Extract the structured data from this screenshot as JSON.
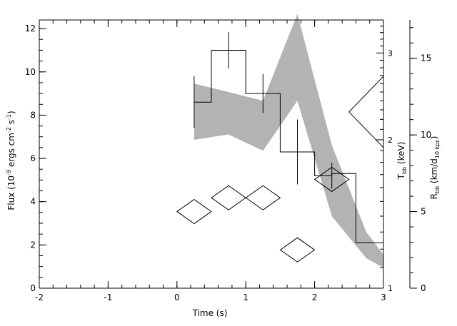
{
  "chart_data": {
    "type": "line",
    "xlabel": "Time (s)",
    "xlim": [
      -2,
      3
    ],
    "x_ticks": [
      "-2",
      "-1",
      "0",
      "1",
      "2",
      "3"
    ],
    "y_left": {
      "label_main": "Flux (10",
      "label_exp1": "-9",
      "label_mid": " ergs cm",
      "label_exp2": "-2",
      "label_s": " s",
      "label_exp3": "-1",
      "label_end": ")",
      "range": [
        0,
        12.4
      ],
      "ticks": [
        "0",
        "2",
        "4",
        "6",
        "8",
        "10",
        "12"
      ]
    },
    "y_temp": {
      "label_main": "T",
      "label_sub": "bb",
      "label_unit": " (keV)",
      "scale": "log",
      "range": [
        1,
        3.5
      ],
      "ticks": [
        "1",
        "2",
        "3"
      ]
    },
    "y_radius": {
      "label_main": "R",
      "label_sub": "bb",
      "label_unit1": " (km/d",
      "label_sub2": "10 kpc",
      "label_unit2": ")",
      "range": [
        0,
        17.5
      ],
      "ticks": [
        "0",
        "5",
        "10",
        "15"
      ]
    },
    "flux_histogram": {
      "edges": [
        0.25,
        0.5,
        1.0,
        1.5,
        2.0,
        2.25,
        2.6,
        3.0
      ],
      "values": [
        8.6,
        11.0,
        9.0,
        6.3,
        5.2,
        5.3,
        2.1
      ],
      "error_bars": [
        {
          "x": 0.25,
          "y": 8.6,
          "err": 1.2
        },
        {
          "x": 0.75,
          "y": 11.0,
          "err": 0.85
        },
        {
          "x": 1.25,
          "y": 9.0,
          "err": 0.9
        },
        {
          "x": 1.75,
          "y": 6.3,
          "err": 1.5
        },
        {
          "x": 2.25,
          "y": 5.2,
          "err": 0.6
        }
      ]
    },
    "temperature_band": {
      "x": [
        0.25,
        0.75,
        1.25,
        1.75,
        2.25,
        2.75,
        3.0
      ],
      "upper": [
        2.6,
        2.5,
        2.4,
        3.6,
        1.95,
        1.3,
        1.17
      ],
      "lower": [
        2.0,
        2.05,
        1.9,
        2.4,
        1.4,
        1.15,
        1.1
      ]
    },
    "radius_points": [
      {
        "x": 0.25,
        "y": 5.0
      },
      {
        "x": 0.75,
        "y": 5.9
      },
      {
        "x": 1.25,
        "y": 5.9
      },
      {
        "x": 1.75,
        "y": 2.5
      },
      {
        "x": 2.25,
        "y": 7.1
      }
    ],
    "partial_diamond_radius": 11.5
  }
}
